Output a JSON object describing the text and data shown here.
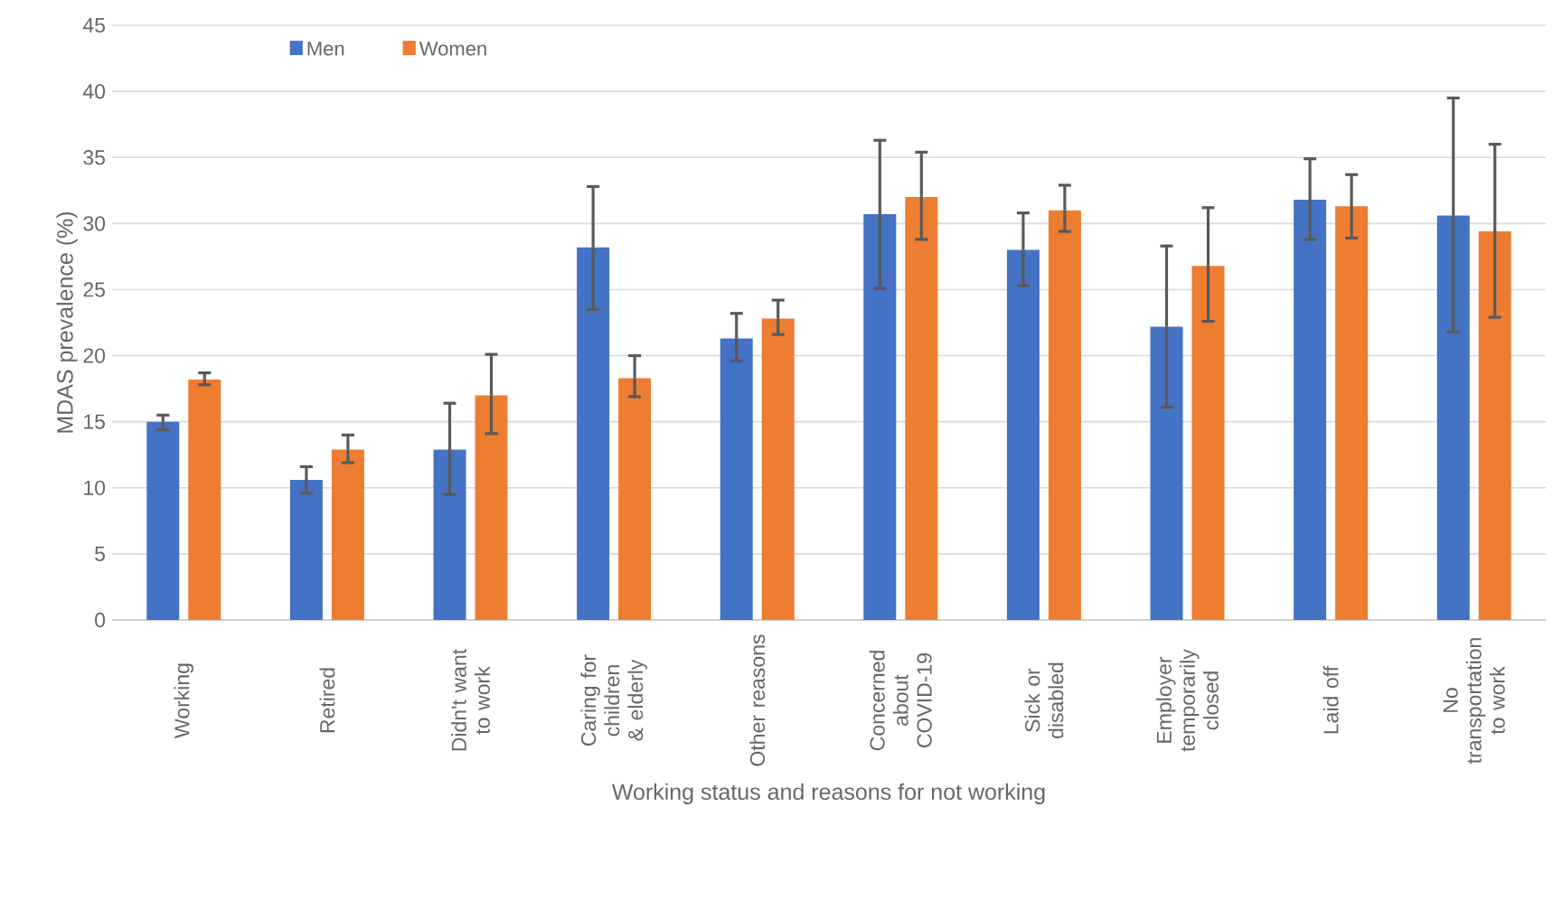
{
  "chart_data": {
    "type": "bar",
    "xlabel": "Working status and reasons for not working",
    "ylabel": "MDAS prevalence (%)",
    "categories": [
      "Working",
      "Retired",
      "Didn't want to work",
      "Caring for children & elderly",
      "Other reasons",
      "Concerned about COVID-19",
      "Sick or disabled",
      "Employer temporarily closed",
      "Laid off",
      "No transportation to work"
    ],
    "series": [
      {
        "name": "Men",
        "color": "#4472c4",
        "values": [
          15.0,
          10.6,
          12.9,
          28.2,
          21.3,
          30.7,
          28.0,
          22.2,
          31.8,
          30.6
        ],
        "errors": [
          [
            14.4,
            15.5
          ],
          [
            9.6,
            11.6
          ],
          [
            9.5,
            16.4
          ],
          [
            23.5,
            32.8
          ],
          [
            19.6,
            23.2
          ],
          [
            25.1,
            36.3
          ],
          [
            25.3,
            30.8
          ],
          [
            16.1,
            28.3
          ],
          [
            28.8,
            34.9
          ],
          [
            21.8,
            39.5
          ]
        ]
      },
      {
        "name": "Women",
        "color": "#ed7d31",
        "values": [
          18.2,
          12.9,
          17.0,
          18.3,
          22.8,
          32.0,
          31.0,
          26.8,
          31.3,
          29.4
        ],
        "errors": [
          [
            17.8,
            18.7
          ],
          [
            11.9,
            14.0
          ],
          [
            14.1,
            20.1
          ],
          [
            16.9,
            20.0
          ],
          [
            21.6,
            24.2
          ],
          [
            28.8,
            35.4
          ],
          [
            29.4,
            32.9
          ],
          [
            22.6,
            31.2
          ],
          [
            28.9,
            33.7
          ],
          [
            22.9,
            36.0
          ]
        ]
      }
    ],
    "ylim": [
      0,
      45
    ],
    "yticks": [
      0,
      5,
      10,
      15,
      20,
      25,
      30,
      35,
      40,
      45
    ],
    "grid": "y",
    "legend": "top left"
  }
}
